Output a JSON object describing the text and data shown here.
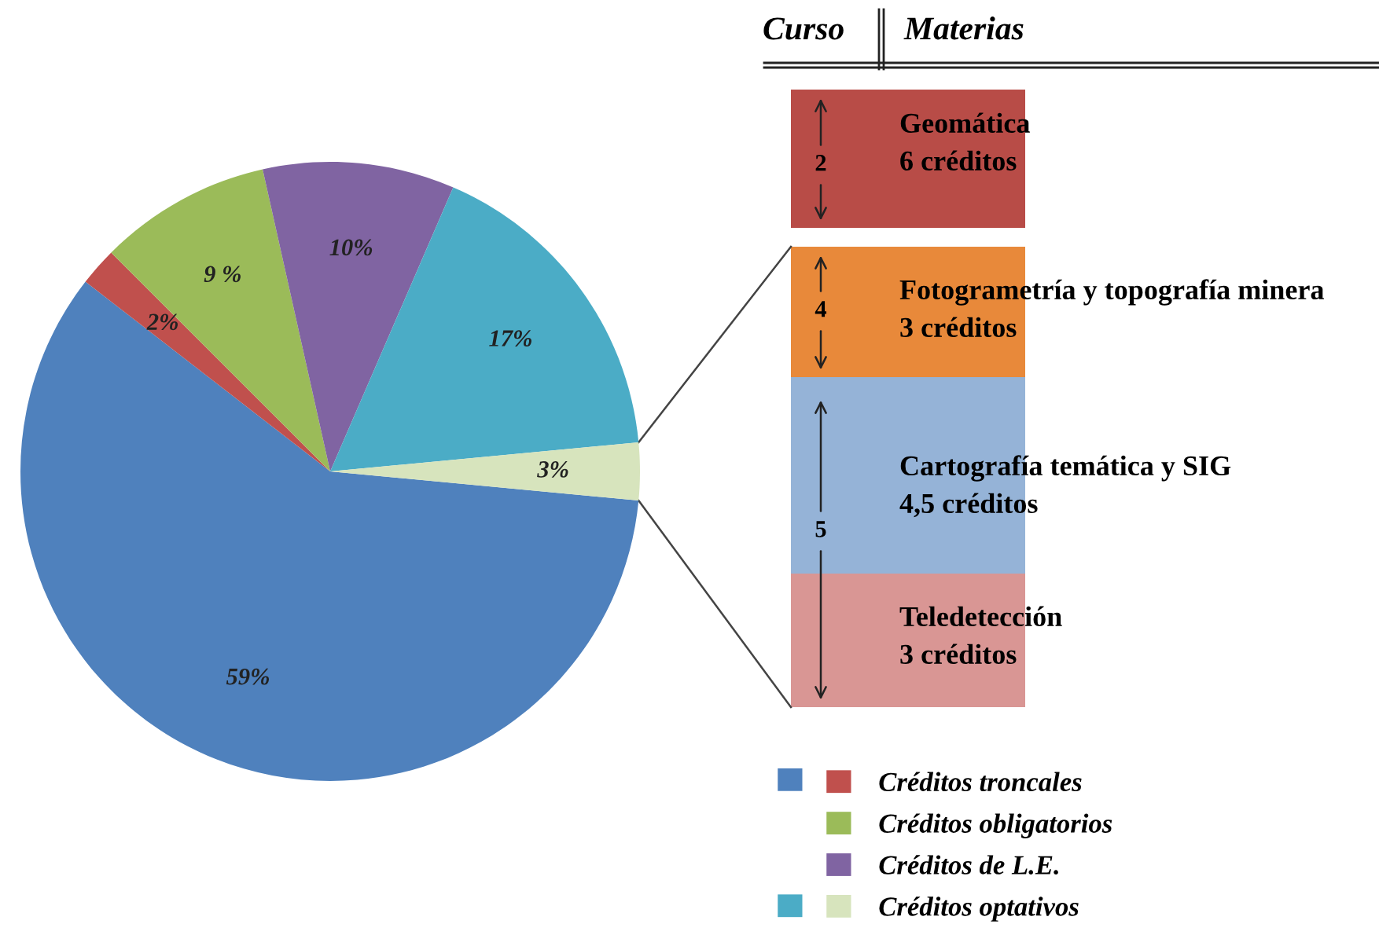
{
  "chart_data": [
    {
      "type": "pie",
      "categories": [
        null,
        "Créditos troncales",
        "Créditos obligatorios",
        "Créditos de L.E.",
        null,
        "Créditos optativos"
      ],
      "values": [
        59,
        2,
        9,
        10,
        17,
        3
      ],
      "colors": [
        "#4f81bd",
        "#c0504d",
        "#9bbb59",
        "#8064a2",
        "#4bacc6",
        "#d7e4bd"
      ],
      "value_labels": [
        "59%",
        "2%",
        "9 %",
        "10%",
        "17%",
        "3%"
      ],
      "legend": "bottom right"
    },
    {
      "type": "other",
      "categories": [
        "Geomática",
        "Fotogrametría y topografía minera",
        "Cartografía temática y SIG",
        "Teledetección"
      ],
      "value_labels": [
        "6 créditos",
        "3 créditos",
        "4,5 créditos",
        "3 créditos"
      ],
      "colors": [
        "#b84c47",
        "#e8893a",
        "#95b3d7",
        "#d99694"
      ],
      "annotations": [
        "Curso",
        "Materias",
        "2",
        "4",
        "5"
      ]
    }
  ]
}
